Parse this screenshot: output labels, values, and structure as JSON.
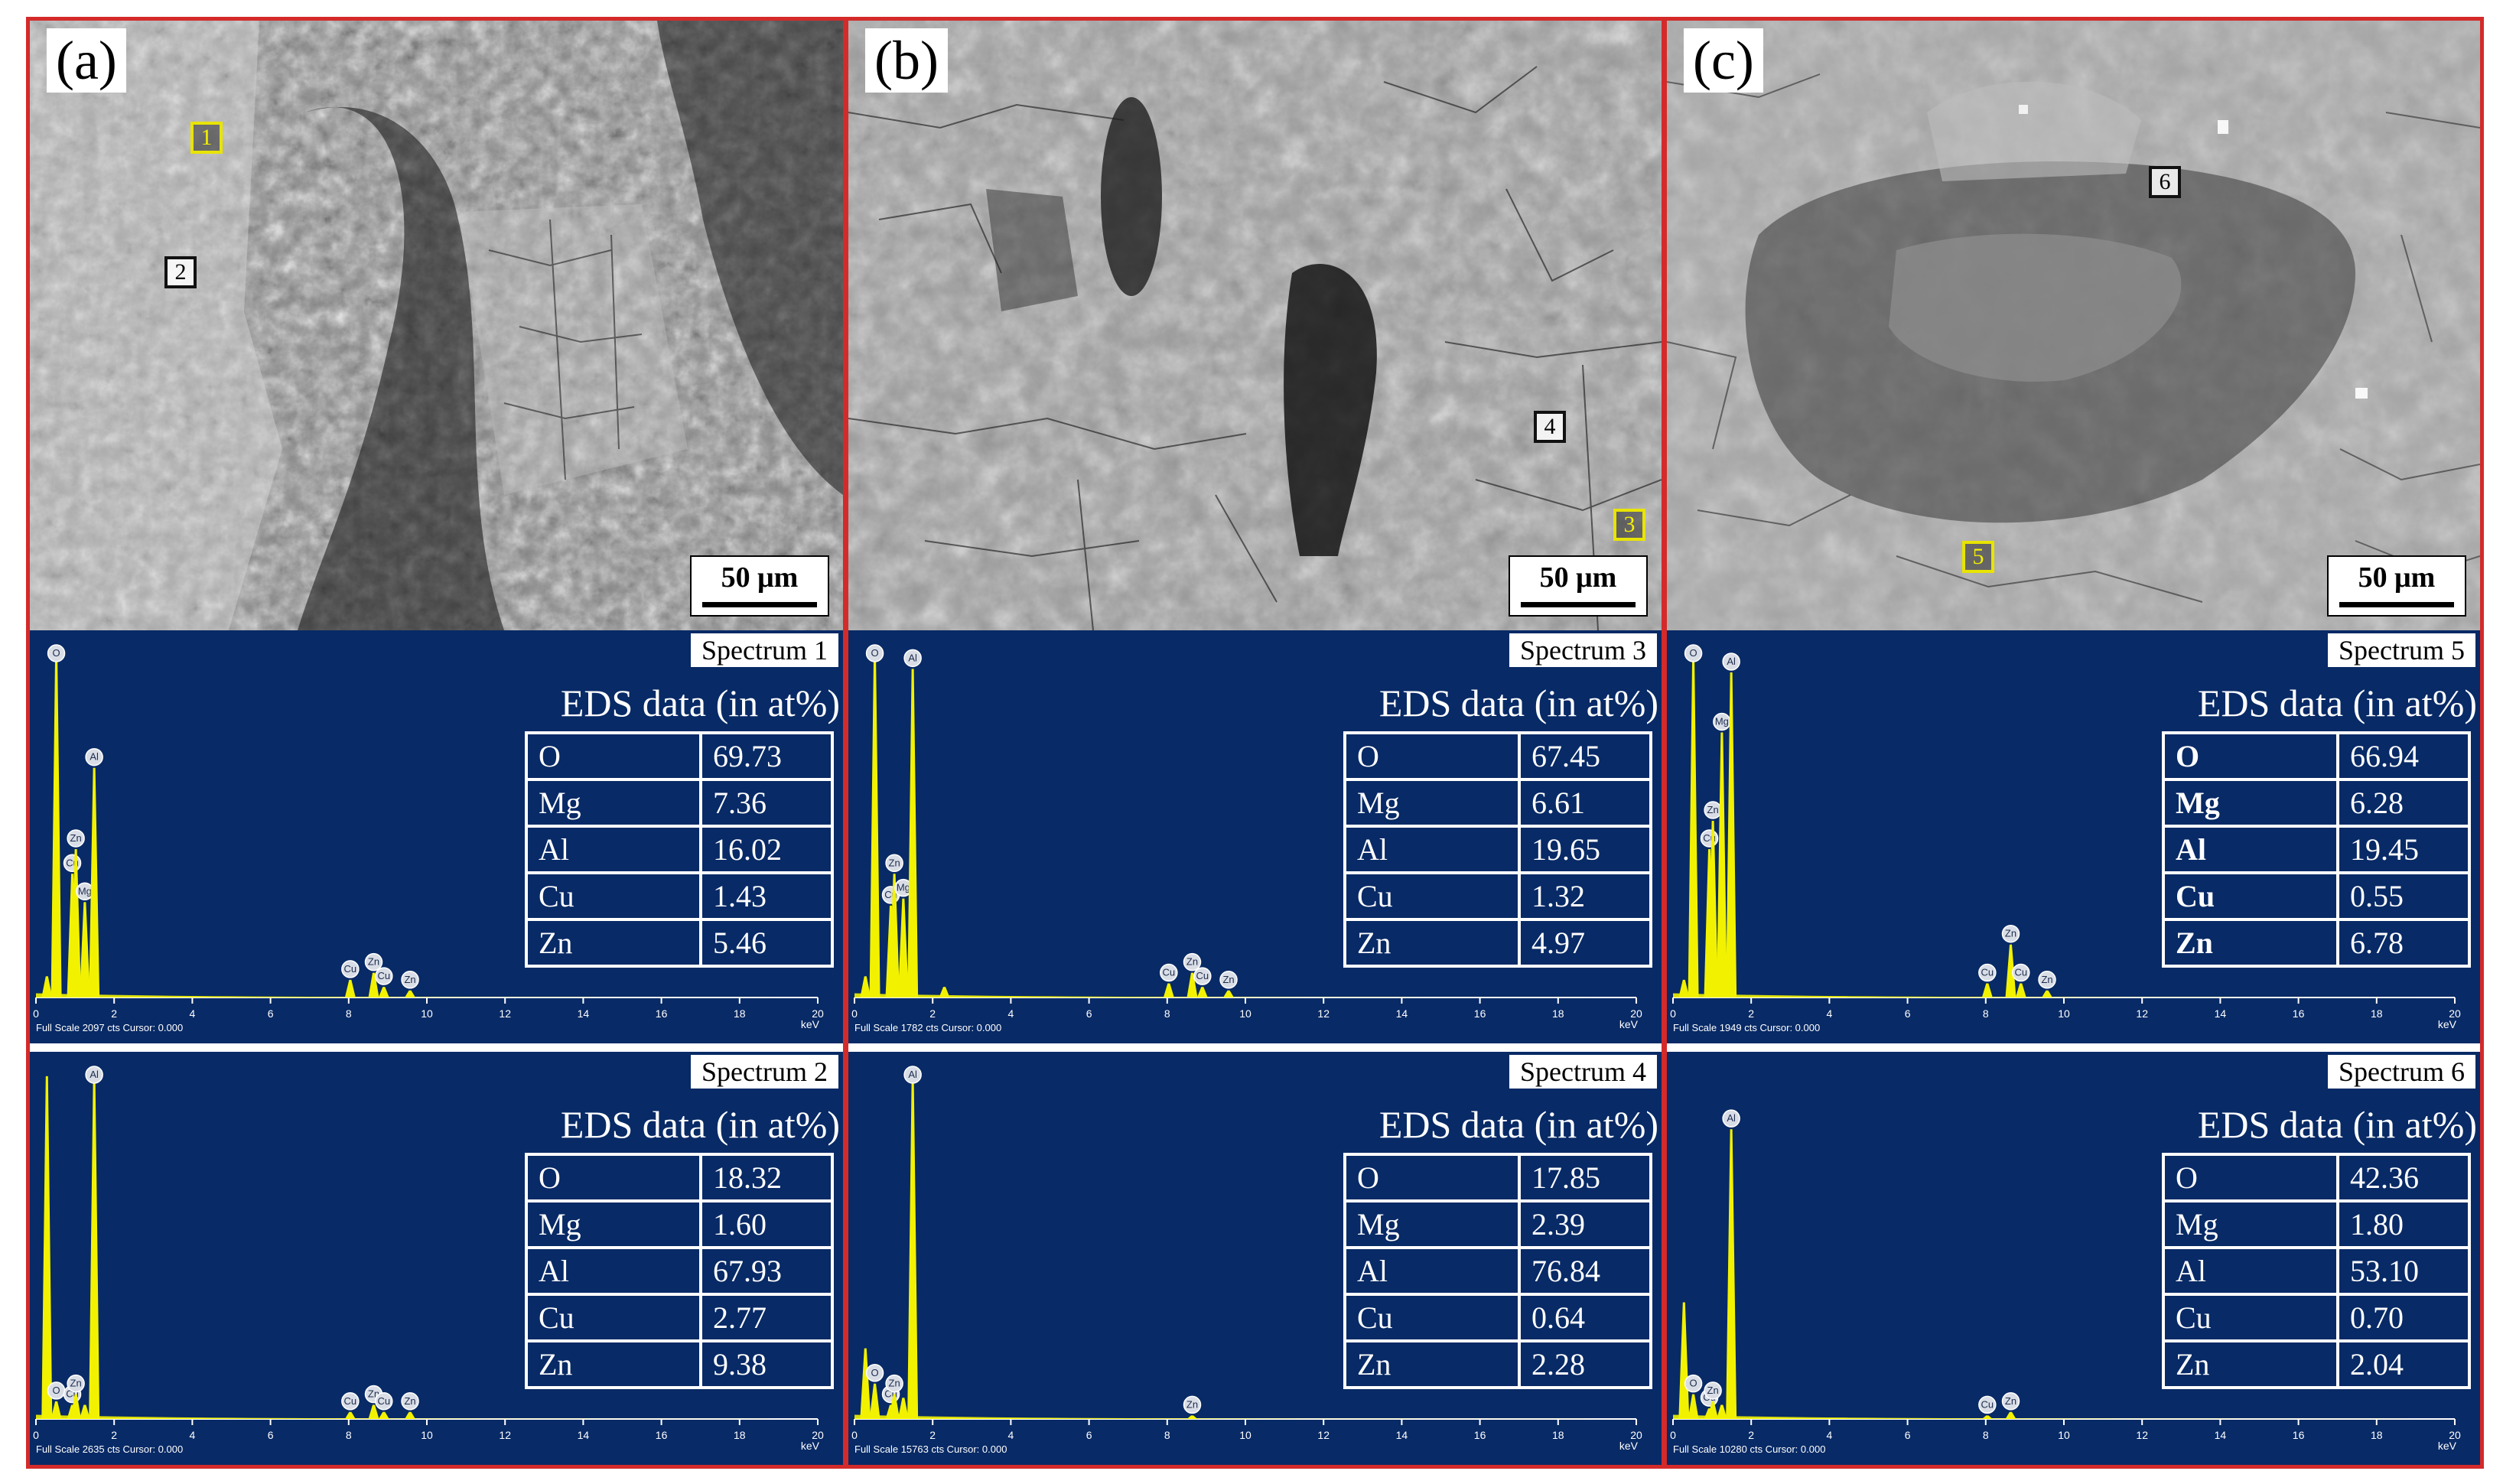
{
  "scale_label": "50 μm",
  "eds_caption": "EDS data (in at%)",
  "axis_ticks": [
    "0",
    "2",
    "4",
    "6",
    "8",
    "10",
    "12",
    "14",
    "16",
    "18",
    "20"
  ],
  "axis_unit": "keV",
  "colors": {
    "frame": "#d42a2a",
    "spectrum_bg": "#082a66",
    "peak": "#f2f200",
    "marker_yellow": "#e8e400"
  },
  "panels": [
    {
      "label": "(a)",
      "markers": [
        {
          "text": "1",
          "color": "yellow"
        },
        {
          "text": "2",
          "color": "black"
        }
      ],
      "spectra": [
        {
          "title": "Spectrum 1",
          "footer": "Full Scale 2097 cts Cursor: 0.000",
          "bold": false,
          "rows": [
            {
              "el": "O",
              "v": "69.73"
            },
            {
              "el": "Mg",
              "v": "7.36"
            },
            {
              "el": "Al",
              "v": "16.02"
            },
            {
              "el": "Cu",
              "v": "1.43"
            },
            {
              "el": "Zn",
              "v": "5.46"
            }
          ],
          "peaks": [
            {
              "kev": 0.28,
              "h": 0.06
            },
            {
              "kev": 0.52,
              "h": 0.97,
              "lbl": "O"
            },
            {
              "kev": 0.93,
              "h": 0.35,
              "lbl": "Cu"
            },
            {
              "kev": 1.02,
              "h": 0.42,
              "lbl": "Zn"
            },
            {
              "kev": 1.25,
              "h": 0.27,
              "lbl": "Mg"
            },
            {
              "kev": 1.49,
              "h": 0.65,
              "lbl": "Al"
            },
            {
              "kev": 8.04,
              "h": 0.05,
              "lbl": "Cu"
            },
            {
              "kev": 8.64,
              "h": 0.07,
              "lbl": "Zn"
            },
            {
              "kev": 8.9,
              "h": 0.03,
              "lbl": "Cu"
            },
            {
              "kev": 9.57,
              "h": 0.02,
              "lbl": "Zn"
            }
          ]
        },
        {
          "title": "Spectrum 2",
          "footer": "Full Scale 2635 cts Cursor: 0.000",
          "bold": false,
          "rows": [
            {
              "el": "O",
              "v": "18.32"
            },
            {
              "el": "Mg",
              "v": "1.60"
            },
            {
              "el": "Al",
              "v": "67.93"
            },
            {
              "el": "Cu",
              "v": "2.77"
            },
            {
              "el": "Zn",
              "v": "9.38"
            }
          ],
          "peaks": [
            {
              "kev": 0.28,
              "h": 0.97
            },
            {
              "kev": 0.52,
              "h": 0.05,
              "lbl": "O"
            },
            {
              "kev": 0.93,
              "h": 0.04,
              "lbl": "Cu"
            },
            {
              "kev": 1.02,
              "h": 0.07,
              "lbl": "Zn"
            },
            {
              "kev": 1.25,
              "h": 0.04
            },
            {
              "kev": 1.49,
              "h": 0.96,
              "lbl": "Al"
            },
            {
              "kev": 8.04,
              "h": 0.02,
              "lbl": "Cu"
            },
            {
              "kev": 8.64,
              "h": 0.04,
              "lbl": "Zn"
            },
            {
              "kev": 8.9,
              "h": 0.02,
              "lbl": "Cu"
            },
            {
              "kev": 9.57,
              "h": 0.02,
              "lbl": "Zn"
            }
          ]
        }
      ]
    },
    {
      "label": "(b)",
      "markers": [
        {
          "text": "3",
          "color": "yellow"
        },
        {
          "text": "4",
          "color": "black"
        }
      ],
      "spectra": [
        {
          "title": "Spectrum 3",
          "footer": "Full Scale 1782 cts Cursor: 0.000",
          "bold": false,
          "rows": [
            {
              "el": "O",
              "v": "67.45"
            },
            {
              "el": "Mg",
              "v": "6.61"
            },
            {
              "el": "Al",
              "v": "19.65"
            },
            {
              "el": "Cu",
              "v": "1.32"
            },
            {
              "el": "Zn",
              "v": "4.97"
            }
          ],
          "peaks": [
            {
              "kev": 0.28,
              "h": 0.06
            },
            {
              "kev": 0.52,
              "h": 0.97,
              "lbl": "O"
            },
            {
              "kev": 0.93,
              "h": 0.26,
              "lbl": "Cu"
            },
            {
              "kev": 1.02,
              "h": 0.35,
              "lbl": "Zn"
            },
            {
              "kev": 1.25,
              "h": 0.28,
              "lbl": "Mg"
            },
            {
              "kev": 1.49,
              "h": 0.93,
              "lbl": "Al"
            },
            {
              "kev": 2.3,
              "h": 0.03
            },
            {
              "kev": 8.04,
              "h": 0.04,
              "lbl": "Cu"
            },
            {
              "kev": 8.64,
              "h": 0.07,
              "lbl": "Zn"
            },
            {
              "kev": 8.9,
              "h": 0.03,
              "lbl": "Cu"
            },
            {
              "kev": 9.57,
              "h": 0.02,
              "lbl": "Zn"
            }
          ]
        },
        {
          "title": "Spectrum 4",
          "footer": "Full Scale 15763 cts Cursor: 0.000",
          "bold": false,
          "rows": [
            {
              "el": "O",
              "v": "17.85"
            },
            {
              "el": "Mg",
              "v": "2.39"
            },
            {
              "el": "Al",
              "v": "76.84"
            },
            {
              "el": "Cu",
              "v": "0.64"
            },
            {
              "el": "Zn",
              "v": "2.28"
            }
          ],
          "peaks": [
            {
              "kev": 0.28,
              "h": 0.2
            },
            {
              "kev": 0.52,
              "h": 0.1,
              "lbl": "O"
            },
            {
              "kev": 0.93,
              "h": 0.04,
              "lbl": "Cu"
            },
            {
              "kev": 1.02,
              "h": 0.07,
              "lbl": "Zn"
            },
            {
              "kev": 1.25,
              "h": 0.06
            },
            {
              "kev": 1.49,
              "h": 0.96,
              "lbl": "Al"
            },
            {
              "kev": 8.64,
              "h": 0.01,
              "lbl": "Zn"
            }
          ]
        }
      ]
    },
    {
      "label": "(c)",
      "markers": [
        {
          "text": "5",
          "color": "yellow"
        },
        {
          "text": "6",
          "color": "black"
        }
      ],
      "spectra": [
        {
          "title": "Spectrum 5",
          "footer": "Full Scale 1949 cts Cursor: 0.000",
          "bold": true,
          "rows": [
            {
              "el": "O",
              "v": "66.94"
            },
            {
              "el": "Mg",
              "v": "6.28"
            },
            {
              "el": "Al",
              "v": "19.45"
            },
            {
              "el": "Cu",
              "v": "0.55"
            },
            {
              "el": "Zn",
              "v": "6.78"
            }
          ],
          "peaks": [
            {
              "kev": 0.28,
              "h": 0.05
            },
            {
              "kev": 0.52,
              "h": 0.96,
              "lbl": "O"
            },
            {
              "kev": 0.93,
              "h": 0.42,
              "lbl": "Cu"
            },
            {
              "kev": 1.02,
              "h": 0.5,
              "lbl": "Zn"
            },
            {
              "kev": 1.25,
              "h": 0.75,
              "lbl": "Mg"
            },
            {
              "kev": 1.49,
              "h": 0.92,
              "lbl": "Al"
            },
            {
              "kev": 8.04,
              "h": 0.04,
              "lbl": "Cu"
            },
            {
              "kev": 8.64,
              "h": 0.15,
              "lbl": "Zn"
            },
            {
              "kev": 8.9,
              "h": 0.04,
              "lbl": "Cu"
            },
            {
              "kev": 9.57,
              "h": 0.02,
              "lbl": "Zn"
            }
          ]
        },
        {
          "title": "Spectrum 6",
          "footer": "Full Scale 10280 cts Cursor: 0.000",
          "bold": false,
          "rows": [
            {
              "el": "O",
              "v": "42.36"
            },
            {
              "el": "Mg",
              "v": "1.80"
            },
            {
              "el": "Al",
              "v": "53.10"
            },
            {
              "el": "Cu",
              "v": "0.70"
            },
            {
              "el": "Zn",
              "v": "2.04"
            }
          ],
          "peaks": [
            {
              "kev": 0.28,
              "h": 0.33
            },
            {
              "kev": 0.52,
              "h": 0.07,
              "lbl": "O"
            },
            {
              "kev": 0.93,
              "h": 0.03,
              "lbl": "Cu"
            },
            {
              "kev": 1.02,
              "h": 0.05,
              "lbl": "Zn"
            },
            {
              "kev": 1.25,
              "h": 0.04
            },
            {
              "kev": 1.49,
              "h": 0.82,
              "lbl": "Al"
            },
            {
              "kev": 8.04,
              "h": 0.01,
              "lbl": "Cu"
            },
            {
              "kev": 8.64,
              "h": 0.02,
              "lbl": "Zn"
            }
          ]
        }
      ]
    }
  ]
}
